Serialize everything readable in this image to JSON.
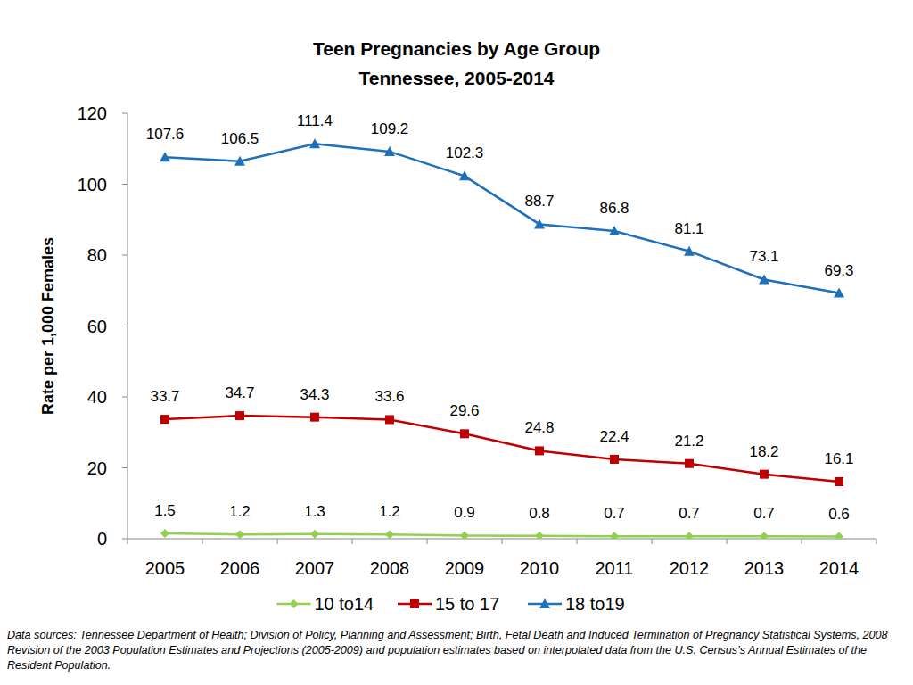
{
  "chart_data": {
    "type": "line",
    "title": "Teen Pregnancies by Age Group",
    "subtitle": "Tennessee, 2005-2014",
    "y_label": "Rate per 1,000 Females",
    "source": "Data sources:  Tennessee Department of Health; Division of Policy, Planning and Assessment; Birth, Fetal Death and Induced Termination of Pregnancy Statistical Systems, 2008 Revision of the 2003 Population Estimates and Projections (2005-2009) and population estimates based on interpolated data from the U.S. Census’s Annual Estimates of the Resident Population.",
    "categories": [
      "2005",
      "2006",
      "2007",
      "2008",
      "2009",
      "2010",
      "2011",
      "2012",
      "2013",
      "2014"
    ],
    "series": [
      {
        "name": "10 to14",
        "color": "#92d050",
        "marker": "diamond",
        "values": [
          1.5,
          1.2,
          1.3,
          1.2,
          0.9,
          0.8,
          0.7,
          0.7,
          0.7,
          0.6
        ]
      },
      {
        "name": "15 to 17",
        "color": "#c00000",
        "marker": "square",
        "values": [
          33.7,
          34.7,
          34.3,
          33.6,
          29.6,
          24.8,
          22.4,
          21.2,
          18.2,
          16.1
        ]
      },
      {
        "name": "18 to19",
        "color": "#1f70ba",
        "marker": "triangle",
        "values": [
          107.6,
          106.5,
          111.4,
          109.2,
          102.3,
          88.7,
          86.8,
          81.1,
          73.1,
          69.3
        ]
      }
    ],
    "ylim": [
      0,
      120
    ],
    "yticks": [
      0,
      20,
      40,
      60,
      80,
      100,
      120
    ],
    "grid": false,
    "legend": "bottom",
    "data_labels": true
  }
}
